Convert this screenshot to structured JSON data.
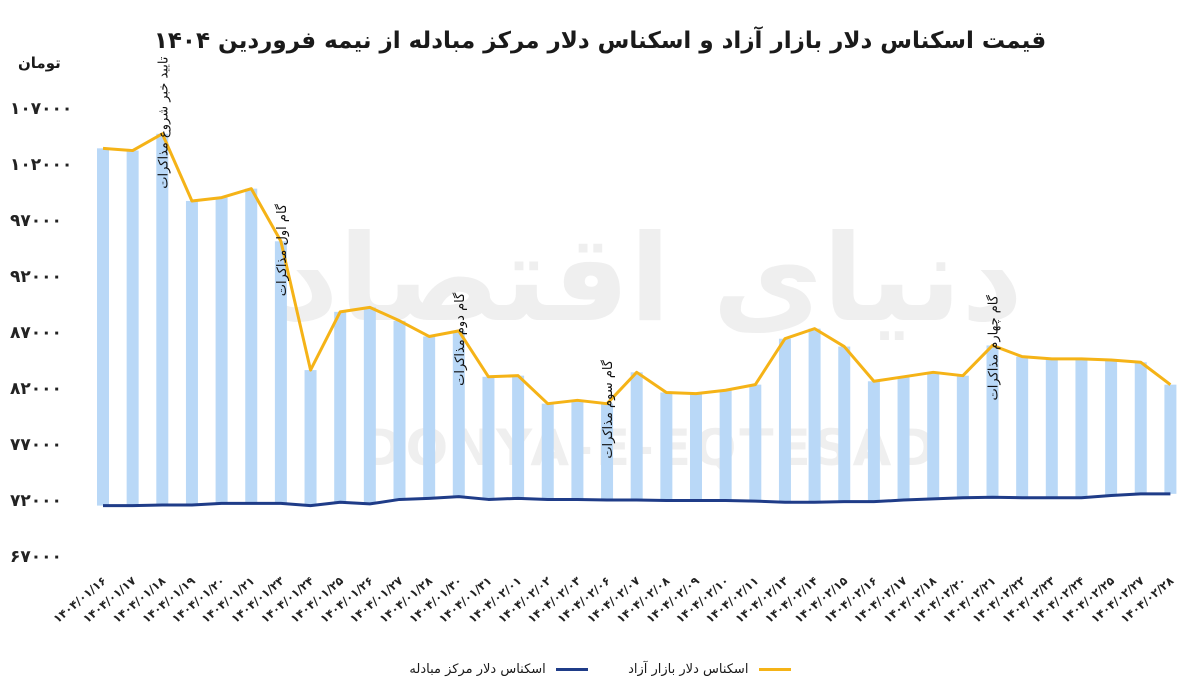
{
  "chart_data": {
    "type": "bar",
    "title": "قیمت اسکناس دلار بازار آزاد و اسکناس دلار مرکز مبادله از نیمه فروردین ۱۴۰۴",
    "ylabel": "تومان",
    "ylim": [
      67000,
      107000
    ],
    "yticks": [
      "۶۷۰۰۰",
      "۷۲۰۰۰",
      "۷۷۰۰۰",
      "۸۲۰۰۰",
      "۸۷۰۰۰",
      "۹۲۰۰۰",
      "۹۷۰۰۰",
      "۱۰۲۰۰۰",
      "۱۰۷۰۰۰"
    ],
    "ytick_values": [
      67000,
      72000,
      77000,
      82000,
      87000,
      92000,
      97000,
      102000,
      107000
    ],
    "categories": [
      "۱۴۰۴/۰۱/۱۶",
      "۱۴۰۴/۰۱/۱۷",
      "۱۴۰۴/۰۱/۱۸",
      "۱۴۰۴/۰۱/۱۹",
      "۱۴۰۴/۰۱/۲۰",
      "۱۴۰۴/۰۱/۲۱",
      "۱۴۰۴/۰۱/۲۳",
      "۱۴۰۴/۰۱/۲۴",
      "۱۴۰۴/۰۱/۲۵",
      "۱۴۰۴/۰۱/۲۶",
      "۱۴۰۴/۰۱/۲۷",
      "۱۴۰۴/۰۱/۲۸",
      "۱۴۰۴/۰۱/۳۰",
      "۱۴۰۴/۰۱/۳۱",
      "۱۴۰۴/۰۲/۰۱",
      "۱۴۰۴/۰۲/۰۲",
      "۱۴۰۴/۰۲/۰۳",
      "۱۴۰۴/۰۲/۰۶",
      "۱۴۰۴/۰۲/۰۷",
      "۱۴۰۴/۰۲/۰۸",
      "۱۴۰۴/۰۲/۰۹",
      "۱۴۰۴/۰۲/۱۰",
      "۱۴۰۴/۰۲/۱۱",
      "۱۴۰۴/۰۲/۱۳",
      "۱۴۰۴/۰۲/۱۴",
      "۱۴۰۴/۰۲/۱۵",
      "۱۴۰۴/۰۲/۱۶",
      "۱۴۰۴/۰۲/۱۷",
      "۱۴۰۴/۰۲/۱۸",
      "۱۴۰۴/۰۲/۲۰",
      "۱۴۰۴/۰۲/۲۱",
      "۱۴۰۴/۰۲/۲۲",
      "۱۴۰۴/۰۲/۲۳",
      "۱۴۰۴/۰۲/۲۴",
      "۱۴۰۴/۰۲/۲۵",
      "۱۴۰۴/۰۲/۲۷",
      "۱۴۰۴/۰۲/۲۸"
    ],
    "series": [
      {
        "name": "اسکناس دلار بازار آزاد",
        "render": "bar+line",
        "bar_color": "#b9d8f7",
        "line_color": "#f5b317",
        "values": [
          103400,
          103200,
          104700,
          98700,
          99000,
          99800,
          95100,
          83600,
          88800,
          89200,
          88000,
          86600,
          87100,
          83000,
          83100,
          80600,
          80900,
          80600,
          83400,
          81600,
          81500,
          81800,
          82300,
          86400,
          87300,
          85700,
          82600,
          83000,
          83400,
          83100,
          85800,
          84800,
          84600,
          84600,
          84500,
          84300,
          82300
        ]
      },
      {
        "name": "اسکناس دلار مرکز مبادله",
        "render": "line",
        "line_color": "#1f3c88",
        "values": [
          71500,
          71500,
          71550,
          71550,
          71700,
          71700,
          71700,
          71500,
          71800,
          71650,
          72050,
          72150,
          72300,
          72050,
          72150,
          72050,
          72050,
          72000,
          72000,
          71950,
          71950,
          71950,
          71900,
          71800,
          71800,
          71850,
          71850,
          72000,
          72100,
          72200,
          72250,
          72200,
          72200,
          72200,
          72400,
          72550,
          72550
        ]
      }
    ],
    "annotations": [
      {
        "text": "تایید خبر شروع مذاکرات",
        "index": 2
      },
      {
        "text": "گام اول مذاکرات",
        "index": 6
      },
      {
        "text": "گام دوم مذاکرات",
        "index": 12
      },
      {
        "text": "گام سوم مذاکرات",
        "index": 17
      },
      {
        "text": "گام چهارم مذاکرات",
        "index": 30
      }
    ],
    "legend_position": "bottom-center",
    "grid": false,
    "watermark": [
      "دنیای اقتصاد",
      "DONYA-E-EQTESAD"
    ]
  }
}
